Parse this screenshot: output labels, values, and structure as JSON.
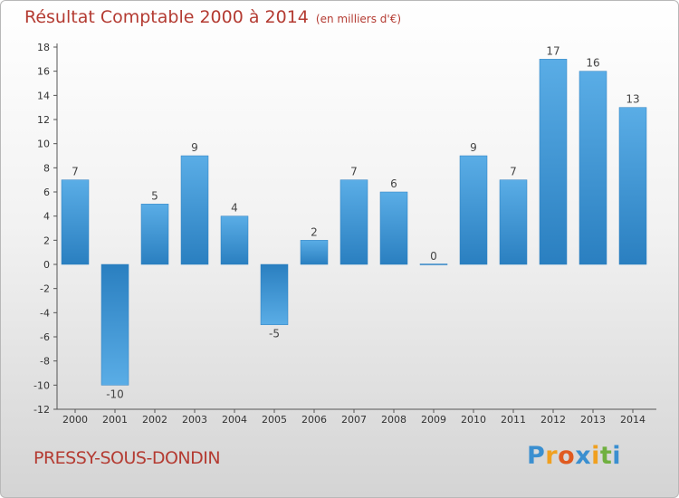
{
  "chart_data": {
    "type": "bar",
    "title": "Résultat Comptable 2000 à 2014",
    "subtitle": "(en milliers d'€)",
    "categories": [
      "2000",
      "2001",
      "2002",
      "2003",
      "2004",
      "2005",
      "2006",
      "2007",
      "2008",
      "2009",
      "2010",
      "2011",
      "2012",
      "2013",
      "2014"
    ],
    "values": [
      7,
      -10,
      5,
      9,
      4,
      -5,
      2,
      7,
      6,
      0,
      9,
      7,
      17,
      16,
      13
    ],
    "ylim": [
      -12,
      18
    ],
    "yticks": [
      18,
      16,
      14,
      12,
      10,
      8,
      6,
      4,
      2,
      0,
      -2,
      -4,
      -6,
      -8,
      -10,
      -12
    ],
    "grid": false,
    "bar_color_top": "#5aade6",
    "bar_color_bottom": "#2a7fc0"
  },
  "footer": {
    "commune": "PRESSY-SOUS-DONDIN"
  },
  "logo": {
    "letters": [
      "P",
      "r",
      "o",
      "x",
      "i",
      "t",
      "i"
    ],
    "colors": [
      "#3a8fd0",
      "#f0a020",
      "#e05a20",
      "#3a8fd0",
      "#f0a020",
      "#70b040",
      "#3a8fd0"
    ]
  }
}
